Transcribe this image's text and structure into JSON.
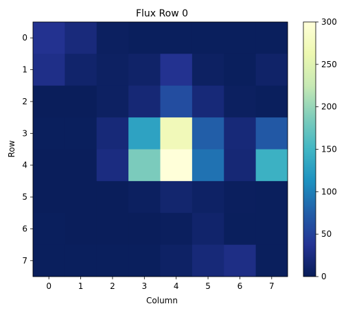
{
  "chart_data": {
    "type": "heatmap",
    "title": "Flux Row 0",
    "xlabel": "Column",
    "ylabel": "Row",
    "x_tick_labels": [
      "0",
      "1",
      "2",
      "3",
      "4",
      "5",
      "6",
      "7"
    ],
    "y_tick_labels": [
      "0",
      "1",
      "2",
      "3",
      "4",
      "5",
      "6",
      "7"
    ],
    "values": [
      [
        35,
        22,
        5,
        3,
        3,
        3,
        3,
        3
      ],
      [
        30,
        12,
        6,
        10,
        35,
        6,
        3,
        10
      ],
      [
        2,
        2,
        6,
        18,
        60,
        20,
        5,
        3
      ],
      [
        3,
        3,
        20,
        130,
        270,
        75,
        20,
        70
      ],
      [
        2,
        2,
        25,
        185,
        300,
        90,
        18,
        145
      ],
      [
        2,
        2,
        2,
        5,
        14,
        8,
        4,
        3
      ],
      [
        3,
        2,
        2,
        2,
        4,
        12,
        3,
        3
      ],
      [
        3,
        3,
        3,
        3,
        8,
        20,
        28,
        3
      ]
    ],
    "colorbar": {
      "colormap": "YlGnBu_r",
      "range": [
        0,
        300
      ],
      "tick_labels": [
        "0",
        "50",
        "100",
        "150",
        "200",
        "250",
        "300"
      ]
    }
  }
}
